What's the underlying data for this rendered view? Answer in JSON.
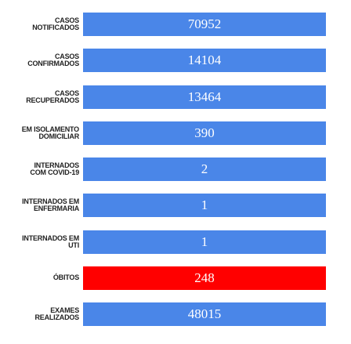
{
  "rows": [
    {
      "label": [
        "CASOS",
        "NOTIFICADOS"
      ],
      "value": 70952,
      "color": "#4a86e8"
    },
    {
      "label": [
        "CASOS",
        "CONFIRMADOS"
      ],
      "value": 14104,
      "color": "#4a86e8"
    },
    {
      "label": [
        "CASOS",
        "RECUPERADOS"
      ],
      "value": 13464,
      "color": "#4a86e8"
    },
    {
      "label": [
        "EM ISOLAMENTO",
        "DOMICILIAR"
      ],
      "value": 390,
      "color": "#4a86e8"
    },
    {
      "label": [
        "INTERNADOS",
        "COM COVID-19"
      ],
      "value": 2,
      "color": "#4a86e8"
    },
    {
      "label": [
        "INTERNADOS EM",
        "ENFERMARIA"
      ],
      "value": 1,
      "color": "#4a86e8"
    },
    {
      "label": [
        "INTERNADOS EM",
        "UTI"
      ],
      "value": 1,
      "color": "#4a86e8"
    },
    {
      "label": [
        "ÓBITOS"
      ],
      "value": 248,
      "color": "#ff0000"
    },
    {
      "label": [
        "EXAMES",
        "REALIZADOS"
      ],
      "value": 48015,
      "color": "#4a86e8"
    }
  ]
}
